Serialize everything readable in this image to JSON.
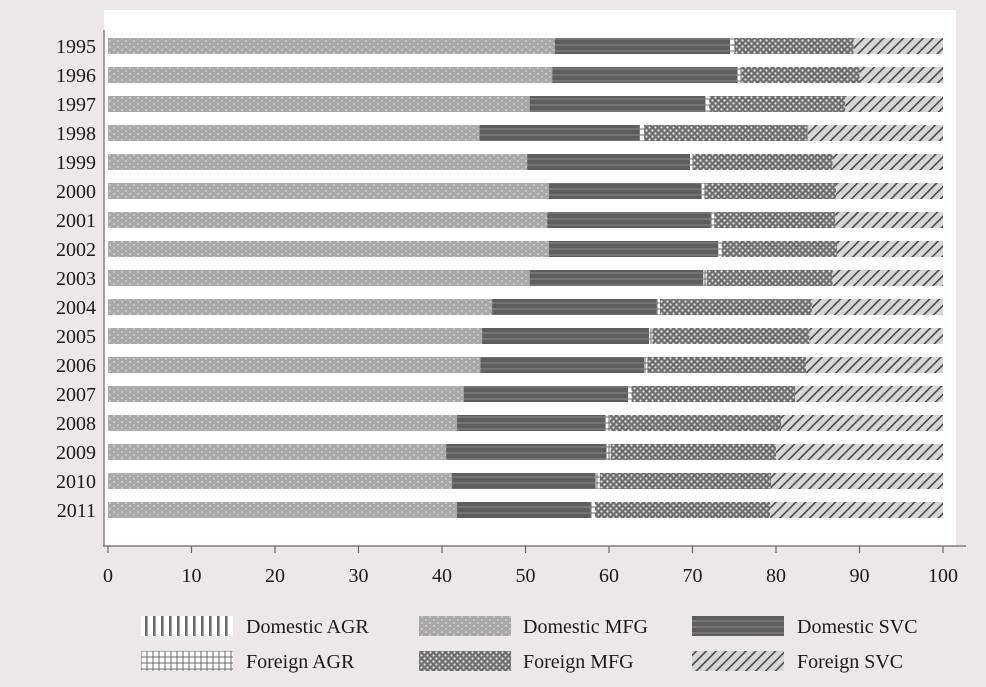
{
  "chart_data": {
    "type": "bar",
    "orientation": "horizontal",
    "stacked": true,
    "categories": [
      "1995",
      "1996",
      "1997",
      "1998",
      "1999",
      "2000",
      "2001",
      "2002",
      "2003",
      "2004",
      "2005",
      "2006",
      "2007",
      "2008",
      "2009",
      "2010",
      "2011"
    ],
    "series": [
      {
        "name": "Domestic AGR",
        "pattern": "vertical-lines",
        "color": "#8c8c8c",
        "values": [
          0,
          0,
          0,
          0,
          0,
          0,
          0,
          0,
          0,
          0,
          0,
          0,
          0,
          0,
          0,
          0,
          0
        ]
      },
      {
        "name": "Domestic MFG",
        "pattern": "dots",
        "color": "#a9a9a9",
        "values": [
          53.5,
          53.2,
          50.5,
          44.5,
          50.2,
          52.8,
          52.6,
          52.8,
          50.5,
          46.0,
          44.8,
          44.6,
          42.6,
          41.8,
          40.5,
          41.2,
          41.8
        ]
      },
      {
        "name": "Domestic SVC",
        "pattern": "solid-stripes",
        "color": "#5e5e5e",
        "values": [
          21.0,
          22.2,
          21.0,
          19.2,
          19.5,
          18.3,
          19.6,
          20.3,
          20.8,
          19.7,
          20.0,
          19.6,
          19.7,
          17.8,
          19.2,
          17.2,
          16.0
        ]
      },
      {
        "name": "Foreign AGR",
        "pattern": "grid",
        "color": "#e4e4e4",
        "values": [
          0.5,
          0.5,
          0.5,
          0.5,
          0.4,
          0.4,
          0.4,
          0.4,
          0.4,
          0.4,
          0.4,
          0.4,
          0.4,
          0.5,
          0.5,
          0.5,
          0.5
        ]
      },
      {
        "name": "Foreign MFG",
        "pattern": "checker",
        "color": "#6e6e6e",
        "values": [
          14.3,
          14.1,
          16.3,
          19.6,
          16.7,
          15.7,
          14.5,
          13.8,
          15.1,
          18.2,
          18.8,
          19.0,
          19.6,
          20.5,
          19.8,
          20.5,
          21.0
        ]
      },
      {
        "name": "Foreign SVC",
        "pattern": "diagonal-hatch",
        "color": "#cfcfcf",
        "values": [
          10.7,
          10.0,
          11.7,
          16.2,
          13.2,
          12.8,
          12.9,
          12.7,
          13.2,
          15.7,
          16.0,
          16.4,
          17.7,
          19.4,
          20.0,
          20.6,
          20.7
        ]
      }
    ],
    "xlim": [
      0,
      100
    ],
    "xticks": [
      "0",
      "10",
      "20",
      "30",
      "40",
      "50",
      "60",
      "70",
      "80",
      "90",
      "100"
    ],
    "title": "",
    "xlabel": "",
    "ylabel": "",
    "grid": false,
    "legend_position": "bottom",
    "legend_rows": [
      [
        "Domestic AGR",
        "Domestic MFG",
        "Domestic SVC"
      ],
      [
        "Foreign AGR",
        "Foreign MFG",
        "Foreign SVC"
      ]
    ]
  }
}
